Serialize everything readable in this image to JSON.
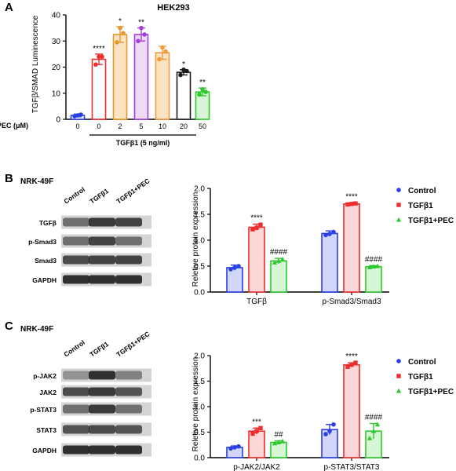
{
  "panel_letters": [
    "A",
    "B",
    "C"
  ],
  "chart_data": [
    {
      "type": "bar",
      "title": "HEK293",
      "ylabel": "TGFβ/SMAD Luminescence",
      "ylim": [
        0,
        40
      ],
      "yticks": [
        0,
        10,
        20,
        30,
        40
      ],
      "x_row_label": "PEC (μM)",
      "categories": [
        "0",
        "0",
        "2",
        "5",
        "10",
        "20",
        "50"
      ],
      "bracket_label": "TGFβ1 (5 ng/ml)",
      "values": [
        1.5,
        23,
        32.5,
        32.5,
        25.5,
        18,
        10.5
      ],
      "errors": [
        0.5,
        2,
        3,
        2.5,
        2.5,
        1,
        1.5
      ],
      "points": [
        [
          1.2,
          1.5,
          1.8
        ],
        [
          21,
          24,
          24
        ],
        [
          29.5,
          35,
          33
        ],
        [
          30,
          35,
          32.5
        ],
        [
          23,
          27.5,
          26
        ],
        [
          17,
          19,
          18.5
        ],
        [
          9.5,
          11.5,
          10.5
        ]
      ],
      "significance": [
        "",
        "****",
        "*",
        "**",
        "",
        "*",
        "**"
      ],
      "colors": [
        "#2a3ee6",
        "#ee2e2e",
        "#e49a2b",
        "#a43ed9",
        "#f09a3e",
        "#1a1a1a",
        "#2ec82e"
      ],
      "fills": [
        "#ffffff",
        "#ffffff",
        "#fde3c4",
        "#ecdaf7",
        "#fde3c4",
        "#ffffff",
        "#d9f5d9"
      ]
    },
    {
      "type": "bar",
      "panel_title": "NRK-49F",
      "blot_lanes": [
        "Control",
        "TGFβ1",
        "TGFβ1+PEC"
      ],
      "blot_rows": [
        "TGFβ",
        "p-Smad3",
        "Smad3",
        "GAPDH"
      ],
      "ylabel": "Reletive protein expression",
      "ylim": [
        0,
        2.0
      ],
      "yticks": [
        "0.0",
        "0.5",
        "1.0",
        "1.5",
        "2.0"
      ],
      "categories": [
        "TGFβ",
        "p-Smad3/Smad3"
      ],
      "series": [
        {
          "name": "Control",
          "values": [
            0.47,
            1.13
          ],
          "errors": [
            0.05,
            0.05
          ],
          "points": [
            [
              0.44,
              0.47,
              0.5
            ],
            [
              1.1,
              1.12,
              1.16
            ]
          ],
          "significance": [
            "",
            ""
          ]
        },
        {
          "name": "TGFβ1",
          "values": [
            1.25,
            1.7
          ],
          "errors": [
            0.06,
            0.02
          ],
          "points": [
            [
              1.21,
              1.24,
              1.3
            ],
            [
              1.69,
              1.7,
              1.71
            ]
          ],
          "significance": [
            "****",
            "****"
          ]
        },
        {
          "name": "TGFβ1+PEC",
          "values": [
            0.6,
            0.49
          ],
          "errors": [
            0.05,
            0.02
          ],
          "points": [
            [
              0.57,
              0.6,
              0.63
            ],
            [
              0.48,
              0.49,
              0.5
            ]
          ],
          "significance": [
            "####",
            "####"
          ]
        }
      ],
      "legend_position": "right"
    },
    {
      "type": "bar",
      "panel_title": "NRK-49F",
      "blot_lanes": [
        "Control",
        "TGFβ1",
        "TGFβ1+PEC"
      ],
      "blot_rows": [
        "p-JAK2",
        "JAK2",
        "p-STAT3",
        "STAT3",
        "GAPDH"
      ],
      "ylabel": "Reletive protein expression",
      "ylim": [
        0,
        2.0
      ],
      "yticks": [
        "0.0",
        "0.5",
        "1.0",
        "1.5",
        "2.0"
      ],
      "categories": [
        "p-JAK2/JAK2",
        "p-STAT3/STAT3"
      ],
      "series": [
        {
          "name": "Control",
          "values": [
            0.2,
            0.55
          ],
          "errors": [
            0.03,
            0.1
          ],
          "points": [
            [
              0.18,
              0.2,
              0.22
            ],
            [
              0.46,
              0.52,
              0.65
            ]
          ],
          "significance": [
            "",
            ""
          ]
        },
        {
          "name": "TGFβ1",
          "values": [
            0.52,
            1.82
          ],
          "errors": [
            0.06,
            0.04
          ],
          "points": [
            [
              0.47,
              0.52,
              0.58
            ],
            [
              1.78,
              1.82,
              1.86
            ]
          ],
          "significance": [
            "***",
            "****"
          ]
        },
        {
          "name": "TGFβ1+PEC",
          "values": [
            0.3,
            0.52
          ],
          "errors": [
            0.03,
            0.15
          ],
          "points": [
            [
              0.28,
              0.3,
              0.32
            ],
            [
              0.38,
              0.52,
              0.65
            ]
          ],
          "significance": [
            "##",
            "####"
          ]
        }
      ],
      "legend_position": "right"
    }
  ],
  "series_colors": {
    "Control": {
      "stroke": "#2a3ee6",
      "fill": "#d2d6fb"
    },
    "TGFβ1": {
      "stroke": "#ee2e2e",
      "fill": "#fdd7d7"
    },
    "TGFβ1+PEC": {
      "stroke": "#2ec82e",
      "fill": "#d6f6d6"
    }
  }
}
